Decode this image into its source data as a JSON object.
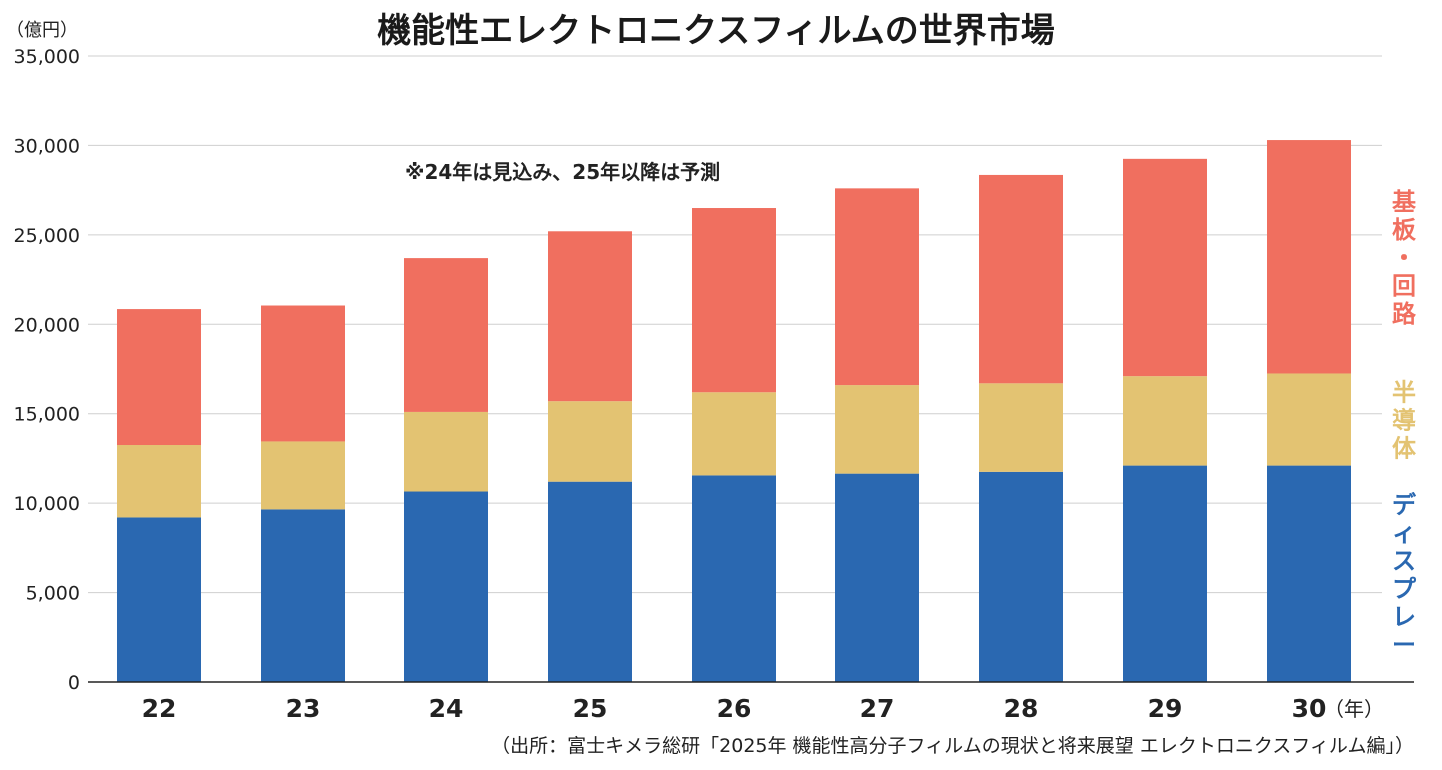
{
  "chart_data": {
    "type": "bar",
    "stacked": true,
    "title": "機能性エレクトロニクスフィルムの世界市場",
    "y_unit": "（億円）",
    "x_unit": "（年）",
    "note": "※24年は見込み、25年以降は予測",
    "source": "（出所：富士キメラ総研「2025年 機能性高分子フィルムの現状と将来展望 エレクトロニクスフィルム編」）",
    "categories": [
      "22",
      "23",
      "24",
      "25",
      "26",
      "27",
      "28",
      "29",
      "30"
    ],
    "ylim": [
      0,
      35000
    ],
    "yticks": [
      "0",
      "5,000",
      "10,000",
      "15,000",
      "20,000",
      "25,000",
      "30,000",
      "35,000"
    ],
    "grid": true,
    "series": [
      {
        "name": "ディスプレー",
        "color": "#2a68b1",
        "values": [
          9200,
          9650,
          10650,
          11200,
          11550,
          11650,
          11750,
          12100,
          12100
        ]
      },
      {
        "name": "半導体",
        "color": "#e3c372",
        "values": [
          4050,
          3800,
          4450,
          4500,
          4650,
          4950,
          4950,
          5000,
          5150
        ]
      },
      {
        "name": "基板・回路",
        "color": "#f06f5f",
        "values": [
          7600,
          7600,
          8600,
          9500,
          10300,
          11000,
          11650,
          12150,
          13050
        ]
      }
    ]
  }
}
